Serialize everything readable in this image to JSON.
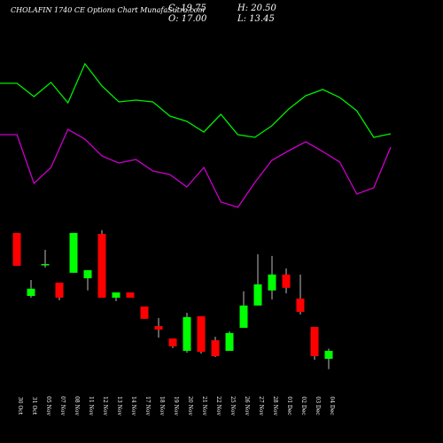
{
  "chart_data": [
    {
      "type": "candlestick",
      "title": "CHOLAFIN 1740 CE Options Chart MunafaSutra.com",
      "summary": [
        "C: 19.75",
        "H: 20.50",
        "O: 17.00",
        "L: 13.45"
      ],
      "x": [
        "30 Oct",
        "31 Oct",
        "05 Nov",
        "07 Nov",
        "08 Nov",
        "11 Nov",
        "12 Nov",
        "13 Nov",
        "14 Nov",
        "17 Nov",
        "18 Nov",
        "19 Nov",
        "20 Nov",
        "21 Nov",
        "22 Nov",
        "25 Nov",
        "26 Nov",
        "27 Nov",
        "28 Nov",
        "01 Dec",
        "02 Dec",
        "03 Dec",
        "04 Dec"
      ],
      "open": [
        60.45,
        38.7,
        49.4,
        43.3,
        46.7,
        44.8,
        60.1,
        38.1,
        39.9,
        35.05,
        28.3,
        24.0,
        19.75,
        31.7,
        23.4,
        19.75,
        27.7,
        35.4,
        40.6,
        46.1,
        37.8,
        28.0,
        17
      ],
      "high": [
        60.45,
        44.2,
        54.6,
        43.3,
        60.45,
        47.6,
        61.4,
        39.9,
        39.9,
        35.05,
        31.1,
        24.0,
        32.9,
        31.7,
        24.6,
        26.5,
        40.3,
        53.1,
        52.5,
        48.2,
        46.1,
        28.0,
        20.5
      ],
      "low": [
        49.1,
        38.1,
        48.5,
        37.2,
        46.7,
        40.6,
        38.1,
        36.9,
        38.1,
        30.8,
        24.3,
        20.7,
        19.1,
        18.8,
        17.6,
        19.75,
        27.7,
        35.4,
        37.5,
        39.6,
        32.3,
        16.7,
        13.45
      ],
      "close": [
        49.1,
        41.2,
        49.7,
        38.1,
        60.45,
        47.6,
        38.1,
        39.9,
        38.1,
        30.8,
        27.1,
        21.3,
        31.4,
        19.4,
        17.9,
        25.9,
        35.4,
        42.7,
        46.1,
        41.5,
        33.2,
        17.9,
        19.75
      ],
      "up_color": "#00ff00",
      "down_color": "#ff0000",
      "wick_color": "#bbbbbb",
      "ylim": [
        12.4,
        64.4
      ]
    },
    {
      "type": "line",
      "ylim": [
        0,
        250
      ],
      "series": [
        {
          "color": "#00ee00",
          "values": [
            156,
            156,
            141,
            157,
            134,
            178,
            153,
            135,
            137,
            135,
            119,
            113,
            101,
            121,
            98,
            95,
            108,
            127,
            142,
            149,
            140,
            125,
            95,
            99
          ]
        },
        {
          "color": "#cc00cc",
          "values": [
            98,
            98,
            43,
            61,
            104,
            93,
            74,
            66,
            70,
            57,
            53,
            39,
            61,
            22,
            16,
            44,
            69,
            80,
            90,
            79,
            67,
            31,
            38,
            84
          ]
        }
      ]
    }
  ]
}
